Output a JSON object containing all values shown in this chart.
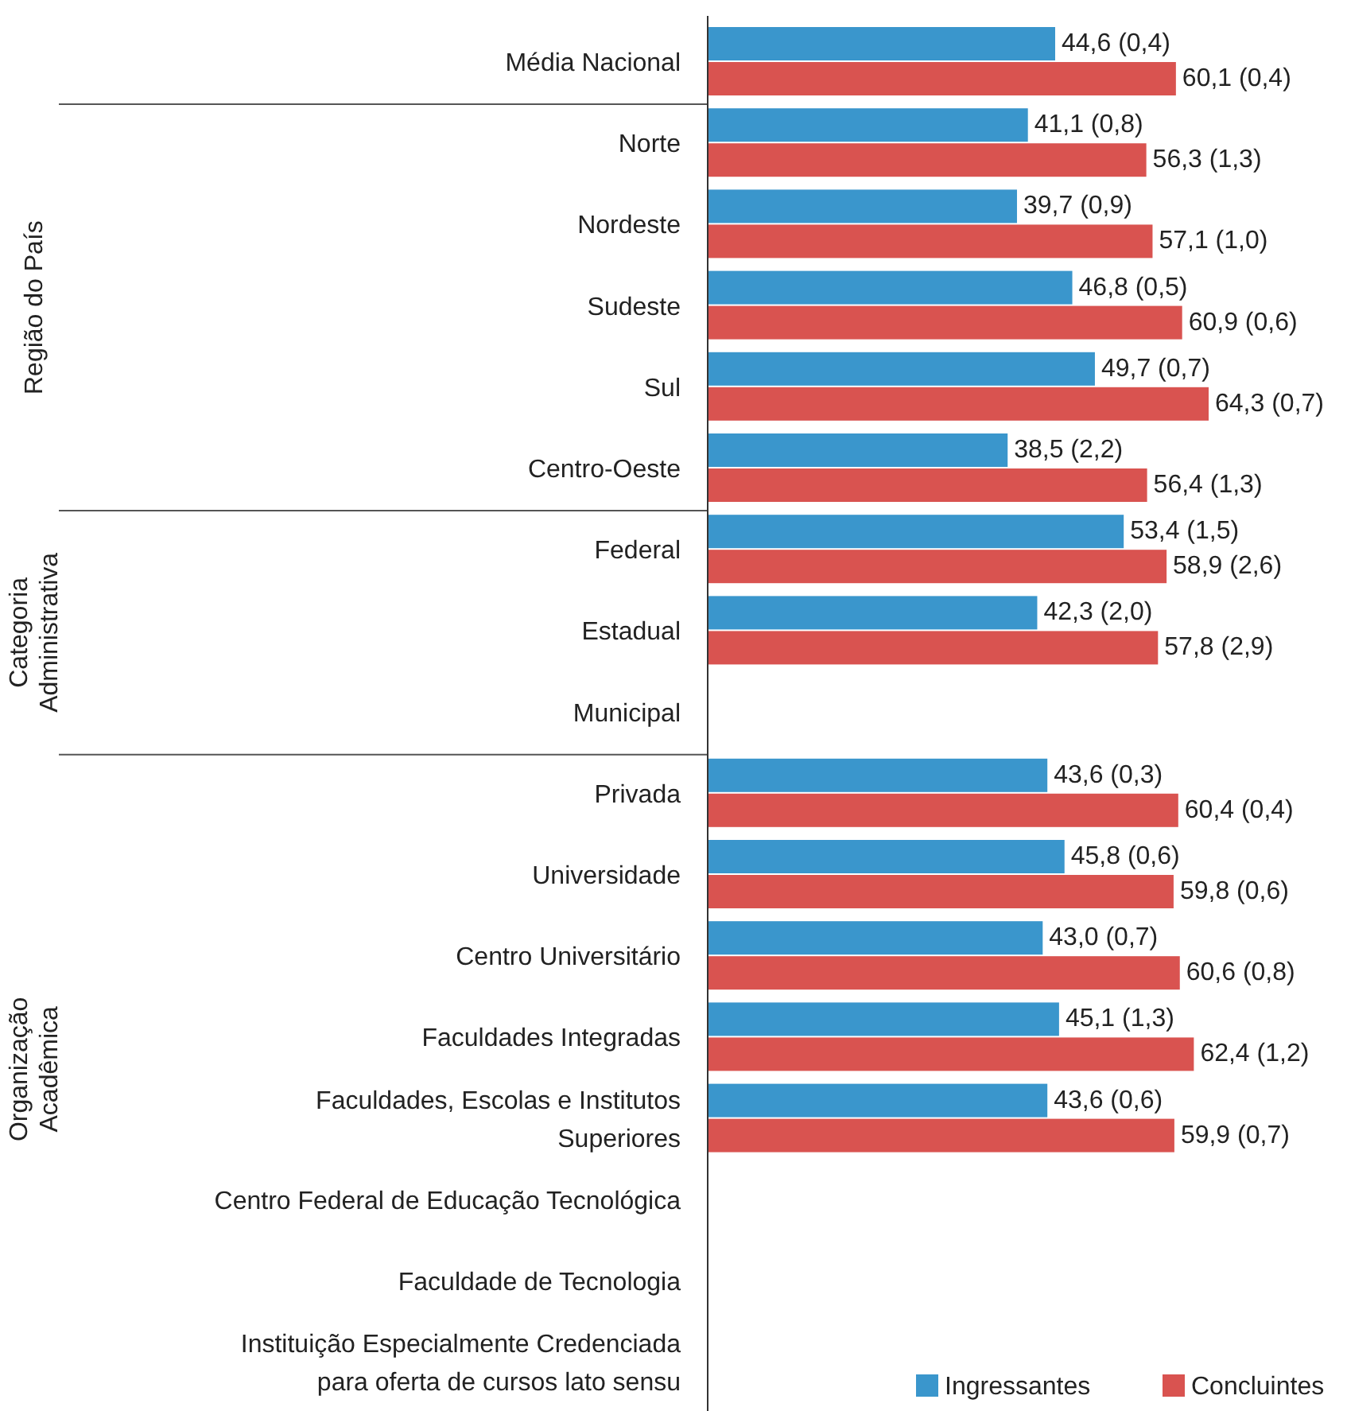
{
  "chart_data": {
    "type": "bar",
    "orientation": "horizontal",
    "legend": "bottom right",
    "categories": [
      "Média Nacional",
      "Norte",
      "Nordeste",
      "Sudeste",
      "Sul",
      "Centro-Oeste",
      "Federal",
      "Estadual",
      "Municipal",
      "Privada",
      "Universidade",
      "Centro Universitário",
      "Faculdades Integradas",
      "Faculdades, Escolas e Institutos Superiores",
      "Centro Federal de Educação Tecnológica",
      "Faculdade de Tecnologia",
      "Instituição Especialmente Credenciada para oferta de cursos lato sensu"
    ],
    "series": [
      {
        "name": "Ingressantes",
        "color": "#3a96cc",
        "values": [
          44.6,
          41.1,
          39.7,
          46.8,
          49.7,
          38.5,
          53.4,
          42.3,
          null,
          43.6,
          45.8,
          43.0,
          45.1,
          43.6,
          null,
          null,
          null
        ],
        "value_labels": [
          "44,6 (0,4)",
          "41,1 (0,8)",
          "39,7 (0,9)",
          "46,8 (0,5)",
          "49,7 (0,7)",
          "38,5 (2,2)",
          "53,4 (1,5)",
          "42,3 (2,0)",
          null,
          "43,6 (0,3)",
          "45,8 (0,6)",
          "43,0 (0,7)",
          "45,1 (1,3)",
          "43,6 (0,6)",
          null,
          null,
          null
        ]
      },
      {
        "name": "Concluintes",
        "color": "#d95350",
        "values": [
          60.1,
          56.3,
          57.1,
          60.9,
          64.3,
          56.4,
          58.9,
          57.8,
          null,
          60.4,
          59.8,
          60.6,
          62.4,
          59.9,
          null,
          null,
          null
        ],
        "value_labels": [
          "60,1 (0,4)",
          "56,3 (1,3)",
          "57,1 (1,0)",
          "60,9 (0,6)",
          "64,3 (0,7)",
          "56,4 (1,3)",
          "58,9 (2,6)",
          "57,8 (2,9)",
          null,
          "60,4 (0,4)",
          "59,8 (0,6)",
          "60,6 (0,8)",
          "62,4 (1,2)",
          "59,9 (0,7)",
          null,
          null,
          null
        ]
      }
    ],
    "annotations": [
      "Região do País",
      "Categoria Administrativa",
      "Organização Acadêmica"
    ]
  }
}
